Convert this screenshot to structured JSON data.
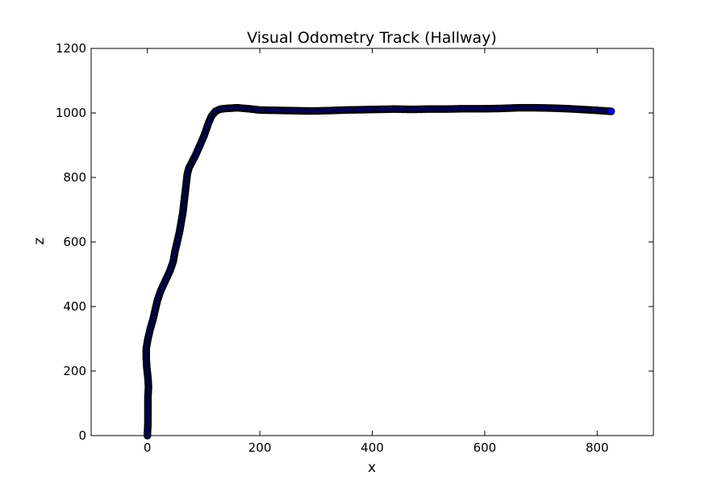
{
  "chart_data": {
    "type": "scatter",
    "title": "Visual Odometry Track (Hallway)",
    "xlabel": "x",
    "ylabel": "z",
    "xlim": [
      -100,
      900
    ],
    "ylim": [
      0,
      1200
    ],
    "xticks": [
      0,
      200,
      400,
      600,
      800
    ],
    "yticks": [
      0,
      200,
      400,
      600,
      800,
      1000,
      1200
    ],
    "grid": false,
    "marker_color": "#0000ff",
    "marker_edge_color": "#000000",
    "points": [
      [
        0,
        0
      ],
      [
        1,
        40
      ],
      [
        1,
        80
      ],
      [
        1,
        120
      ],
      [
        2,
        150
      ],
      [
        1,
        180
      ],
      [
        -1,
        210
      ],
      [
        -2,
        240
      ],
      [
        -2,
        270
      ],
      [
        1,
        300
      ],
      [
        5,
        330
      ],
      [
        10,
        360
      ],
      [
        14,
        390
      ],
      [
        18,
        420
      ],
      [
        24,
        450
      ],
      [
        32,
        480
      ],
      [
        40,
        510
      ],
      [
        46,
        540
      ],
      [
        49,
        570
      ],
      [
        53,
        600
      ],
      [
        57,
        630
      ],
      [
        60,
        660
      ],
      [
        63,
        690
      ],
      [
        65,
        720
      ],
      [
        67,
        750
      ],
      [
        69,
        780
      ],
      [
        71,
        810
      ],
      [
        74,
        830
      ],
      [
        80,
        850
      ],
      [
        86,
        870
      ],
      [
        91,
        890
      ],
      [
        96,
        910
      ],
      [
        101,
        930
      ],
      [
        105,
        950
      ],
      [
        109,
        970
      ],
      [
        114,
        990
      ],
      [
        121,
        1005
      ],
      [
        130,
        1012
      ],
      [
        140,
        1014
      ],
      [
        150,
        1015
      ],
      [
        160,
        1016
      ],
      [
        180,
        1013
      ],
      [
        200,
        1009
      ],
      [
        230,
        1008
      ],
      [
        260,
        1007
      ],
      [
        290,
        1006
      ],
      [
        320,
        1007
      ],
      [
        350,
        1009
      ],
      [
        380,
        1010
      ],
      [
        410,
        1011
      ],
      [
        440,
        1012
      ],
      [
        470,
        1011
      ],
      [
        500,
        1012
      ],
      [
        530,
        1012
      ],
      [
        560,
        1013
      ],
      [
        600,
        1013
      ],
      [
        630,
        1014
      ],
      [
        660,
        1016
      ],
      [
        690,
        1016
      ],
      [
        720,
        1015
      ],
      [
        750,
        1013
      ],
      [
        780,
        1010
      ],
      [
        800,
        1008
      ],
      [
        815,
        1006
      ],
      [
        825,
        1005
      ]
    ]
  }
}
